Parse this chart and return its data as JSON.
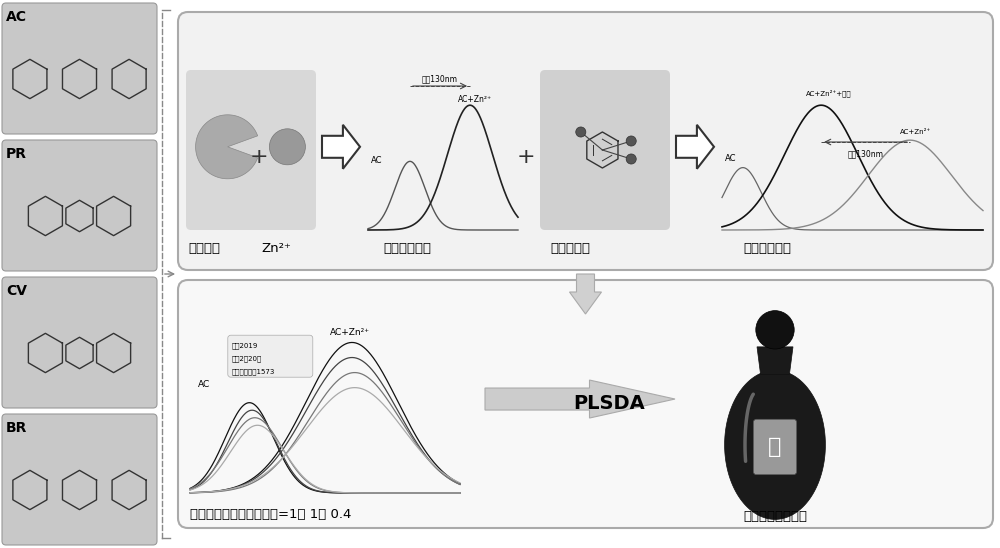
{
  "bg_color": "#ffffff",
  "fig_width": 10.0,
  "fig_height": 5.48,
  "dpi": 100,
  "labels": {
    "AC": "AC",
    "PR": "PR",
    "CV": "CV",
    "BR": "BR",
    "dye": "有机染料",
    "zn": "Zn²⁺",
    "redshift_title": "光谱信号红移",
    "flavor": "风味化合物",
    "blueshift_title": "光谱信号蓝移",
    "redshift_ann": "红移130nm",
    "blueshift_ann": "蓝移130nm",
    "ratio": "有机染料：锅离子：白酒=1： 1： 0.4",
    "result": "鉴别高温大曲白酒",
    "plsda": "PLSDA",
    "legend1": "茅台2019",
    "legend2": "白云2農20年",
    "legend3": "泸州老窖国窖1573",
    "ac": "AC",
    "ac_zn": "AC+Zn²⁺",
    "ac_zn_baijiu": "AC+Zn²⁺+白酒",
    "jiu": "酒"
  }
}
